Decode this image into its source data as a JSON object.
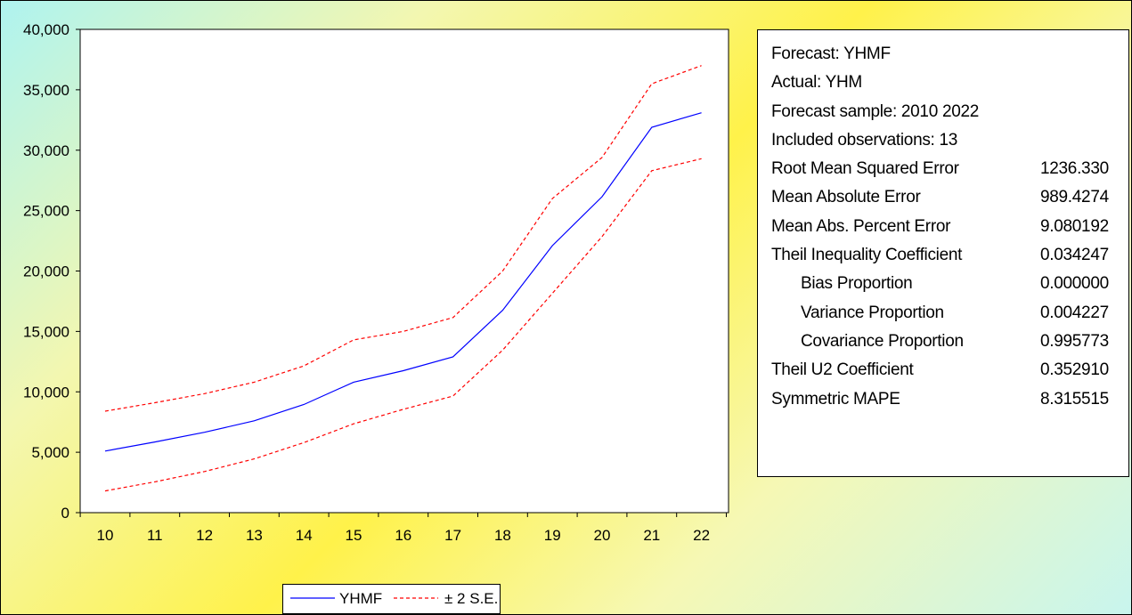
{
  "chart_data": {
    "type": "line",
    "title": "",
    "xlabel": "",
    "ylabel": "",
    "categories": [
      "10",
      "11",
      "12",
      "13",
      "14",
      "15",
      "16",
      "17",
      "18",
      "19",
      "20",
      "21",
      "22"
    ],
    "ylim": [
      0,
      40000
    ],
    "y_ticks": [
      0,
      5000,
      10000,
      15000,
      20000,
      25000,
      30000,
      35000,
      40000
    ],
    "y_tick_labels": [
      "0",
      "5,000",
      "10,000",
      "15,000",
      "20,000",
      "25,000",
      "30,000",
      "35,000",
      "40,000"
    ],
    "series": [
      {
        "name": "YHMF",
        "color": "#0000ff",
        "style": "solid",
        "values": [
          5100,
          5850,
          6650,
          7600,
          8950,
          10800,
          11750,
          12900,
          16750,
          22100,
          26150,
          31900,
          33100
        ]
      },
      {
        "name": "± 2 S.E.",
        "color": "#ff0000",
        "style": "dashed",
        "values": [
          8400,
          9100,
          9850,
          10800,
          12150,
          14300,
          15000,
          16150,
          20000,
          26000,
          29400,
          35500,
          37000
        ]
      },
      {
        "name": "",
        "color": "#ff0000",
        "style": "dashed",
        "values": [
          1800,
          2550,
          3400,
          4450,
          5800,
          7350,
          8550,
          9650,
          13450,
          18150,
          22850,
          28300,
          29300
        ]
      }
    ],
    "grid": false,
    "legend_position": "bottom"
  },
  "legend": {
    "forecast_label": "YHMF",
    "se_label": "± 2 S.E."
  },
  "stats": {
    "rows": [
      {
        "label": "Forecast: YHMF",
        "value": ""
      },
      {
        "label": "Actual: YHM",
        "value": ""
      },
      {
        "label": "Forecast sample: 2010 2022",
        "value": ""
      },
      {
        "label": "Included observations: 13",
        "value": ""
      },
      {
        "label": "Root Mean Squared Error",
        "value": "1236.330"
      },
      {
        "label": "Mean Absolute Error",
        "value": "989.4274"
      },
      {
        "label": "Mean Abs. Percent Error",
        "value": "9.080192"
      },
      {
        "label": "Theil Inequality Coefficient",
        "value": "0.034247"
      },
      {
        "label": "Bias Proportion",
        "value": "0.000000",
        "indent": true
      },
      {
        "label": "Variance Proportion",
        "value": "0.004227",
        "indent": true
      },
      {
        "label": "Covariance Proportion",
        "value": "0.995773",
        "indent": true
      },
      {
        "label": "Theil U2 Coefficient",
        "value": "0.352910"
      },
      {
        "label": "Symmetric MAPE",
        "value": "8.315515"
      }
    ]
  }
}
